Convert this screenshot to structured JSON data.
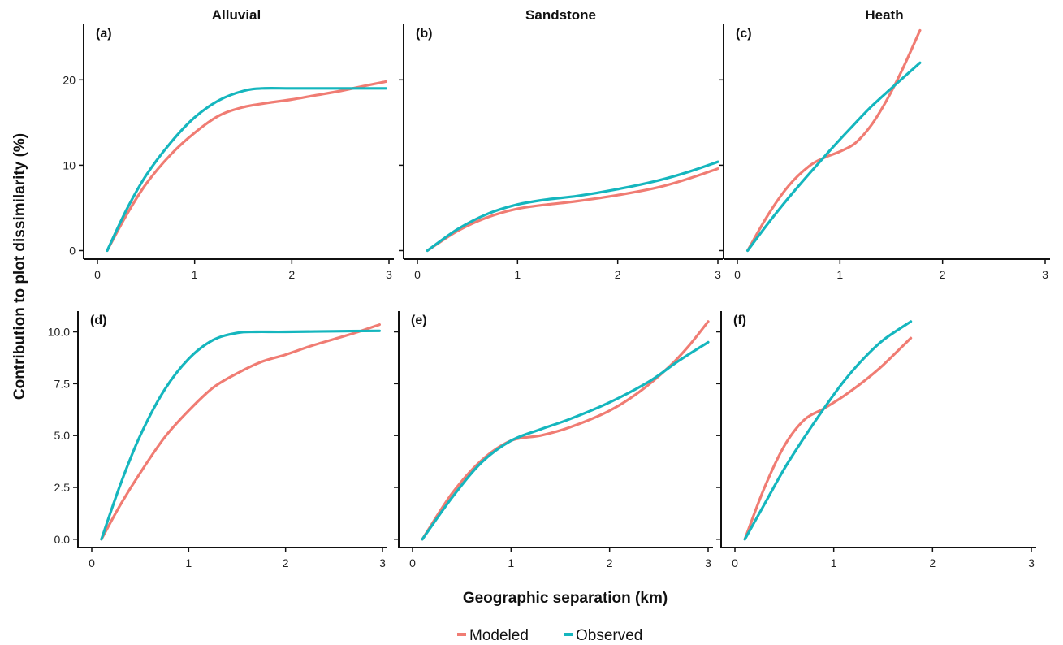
{
  "colors": {
    "modeled": "#F07C73",
    "observed": "#15B6BE",
    "axis": "#111111"
  },
  "figure": {
    "ylabel": "Contribution to plot dissimilarity (%)",
    "xlabel": "Geographic separation (km)",
    "legend": {
      "position": "bottom-center",
      "items": [
        {
          "label": "Modeled",
          "color": "#F07C73"
        },
        {
          "label": "Observed",
          "color": "#15B6BE"
        }
      ]
    }
  },
  "chart_data": [
    {
      "type": "line",
      "panel": "(a)",
      "title": "Alluvial",
      "xlim": [
        0,
        3
      ],
      "ylim": [
        -1,
        26.5
      ],
      "xticks": [
        0,
        1,
        2,
        3
      ],
      "yticks": [
        0,
        10,
        20
      ],
      "ytick_labels": [
        "0",
        "10",
        "20"
      ],
      "series": [
        {
          "name": "Modeled",
          "x": [
            0.1,
            0.3,
            0.5,
            0.75,
            1.0,
            1.25,
            1.5,
            1.75,
            2.0,
            2.25,
            2.5,
            2.75,
            2.97
          ],
          "y": [
            0,
            4.2,
            7.8,
            11.2,
            13.8,
            15.8,
            16.8,
            17.3,
            17.7,
            18.2,
            18.7,
            19.3,
            19.8
          ]
        },
        {
          "name": "Observed",
          "x": [
            0.1,
            0.3,
            0.5,
            0.75,
            1.0,
            1.25,
            1.5,
            1.7,
            2.0,
            2.5,
            2.97
          ],
          "y": [
            0,
            4.8,
            8.8,
            12.6,
            15.6,
            17.6,
            18.7,
            19.0,
            19.0,
            19.0,
            19.0
          ]
        }
      ]
    },
    {
      "type": "line",
      "panel": "(b)",
      "title": "Sandstone",
      "xlim": [
        0,
        3
      ],
      "ylim": [
        -1,
        26.5
      ],
      "xticks": [
        0,
        1,
        2,
        3
      ],
      "yticks": [
        0,
        10,
        20
      ],
      "ytick_labels": [
        "",
        "",
        ""
      ],
      "series": [
        {
          "name": "Modeled",
          "x": [
            0.1,
            0.4,
            0.7,
            1.0,
            1.3,
            1.6,
            2.0,
            2.4,
            2.7,
            3.0
          ],
          "y": [
            0,
            2.3,
            3.9,
            4.9,
            5.4,
            5.8,
            6.5,
            7.4,
            8.4,
            9.6
          ]
        },
        {
          "name": "Observed",
          "x": [
            0.1,
            0.4,
            0.7,
            1.0,
            1.3,
            1.6,
            2.0,
            2.4,
            2.7,
            3.0
          ],
          "y": [
            0,
            2.5,
            4.3,
            5.4,
            6.0,
            6.4,
            7.2,
            8.2,
            9.2,
            10.4
          ]
        }
      ]
    },
    {
      "type": "line",
      "panel": "(c)",
      "title": "Heath",
      "xlim": [
        0,
        3
      ],
      "ylim": [
        -1,
        26.5
      ],
      "xticks": [
        0,
        1,
        2,
        3
      ],
      "yticks": [
        0,
        10,
        20
      ],
      "ytick_labels": [
        "",
        "",
        ""
      ],
      "series": [
        {
          "name": "Modeled",
          "x": [
            0.1,
            0.3,
            0.5,
            0.7,
            0.85,
            1.0,
            1.15,
            1.3,
            1.45,
            1.6,
            1.78
          ],
          "y": [
            0,
            4.2,
            7.6,
            9.9,
            10.9,
            11.6,
            12.6,
            14.6,
            17.5,
            21.0,
            25.8
          ]
        },
        {
          "name": "Observed",
          "x": [
            0.1,
            0.3,
            0.5,
            0.7,
            0.9,
            1.1,
            1.3,
            1.5,
            1.78
          ],
          "y": [
            0,
            3.2,
            6.2,
            9.0,
            11.7,
            14.3,
            16.8,
            19.0,
            22.0
          ]
        }
      ]
    },
    {
      "type": "line",
      "panel": "(d)",
      "title": "",
      "xlim": [
        0,
        3
      ],
      "ylim": [
        -0.4,
        11.0
      ],
      "xticks": [
        0,
        1,
        2,
        3
      ],
      "yticks": [
        0,
        2.5,
        5,
        7.5,
        10
      ],
      "ytick_labels": [
        "0.0",
        "2.5",
        "5.0",
        "7.5",
        "10.0"
      ],
      "series": [
        {
          "name": "Modeled",
          "x": [
            0.1,
            0.3,
            0.5,
            0.75,
            1.0,
            1.25,
            1.5,
            1.75,
            2.0,
            2.25,
            2.5,
            2.75,
            2.97
          ],
          "y": [
            0,
            1.7,
            3.2,
            4.9,
            6.2,
            7.3,
            8.0,
            8.55,
            8.9,
            9.3,
            9.65,
            10.0,
            10.35
          ]
        },
        {
          "name": "Observed",
          "x": [
            0.1,
            0.3,
            0.5,
            0.75,
            1.0,
            1.25,
            1.5,
            1.7,
            2.0,
            2.5,
            2.97
          ],
          "y": [
            0,
            2.7,
            5.0,
            7.2,
            8.7,
            9.6,
            9.95,
            10.0,
            10.0,
            10.03,
            10.05
          ]
        }
      ]
    },
    {
      "type": "line",
      "panel": "(e)",
      "title": "",
      "xlim": [
        0,
        3
      ],
      "ylim": [
        -0.4,
        11.0
      ],
      "xticks": [
        0,
        1,
        2,
        3
      ],
      "yticks": [
        0,
        2.5,
        5,
        7.5,
        10
      ],
      "ytick_labels": [
        "",
        "",
        "",
        "",
        ""
      ],
      "series": [
        {
          "name": "Modeled",
          "x": [
            0.1,
            0.4,
            0.7,
            1.0,
            1.3,
            1.6,
            2.0,
            2.3,
            2.6,
            2.8,
            3.0
          ],
          "y": [
            0,
            2.2,
            3.8,
            4.75,
            5.0,
            5.4,
            6.2,
            7.1,
            8.3,
            9.3,
            10.5
          ]
        },
        {
          "name": "Observed",
          "x": [
            0.1,
            0.4,
            0.7,
            1.0,
            1.3,
            1.6,
            2.0,
            2.4,
            2.7,
            3.0
          ],
          "y": [
            0,
            2.0,
            3.7,
            4.75,
            5.3,
            5.8,
            6.6,
            7.6,
            8.6,
            9.5
          ]
        }
      ]
    },
    {
      "type": "line",
      "panel": "(f)",
      "title": "",
      "xlim": [
        0,
        3
      ],
      "ylim": [
        -0.4,
        11.0
      ],
      "xticks": [
        0,
        1,
        2,
        3
      ],
      "yticks": [
        0,
        2.5,
        5,
        7.5,
        10
      ],
      "ytick_labels": [
        "",
        "",
        "",
        "",
        ""
      ],
      "series": [
        {
          "name": "Modeled",
          "x": [
            0.1,
            0.3,
            0.5,
            0.7,
            0.9,
            1.1,
            1.3,
            1.5,
            1.78
          ],
          "y": [
            0,
            2.5,
            4.5,
            5.75,
            6.3,
            6.9,
            7.6,
            8.4,
            9.7
          ]
        },
        {
          "name": "Observed",
          "x": [
            0.1,
            0.3,
            0.5,
            0.7,
            0.9,
            1.1,
            1.3,
            1.5,
            1.78
          ],
          "y": [
            0,
            1.7,
            3.4,
            4.9,
            6.3,
            7.6,
            8.7,
            9.6,
            10.5
          ]
        }
      ]
    }
  ]
}
